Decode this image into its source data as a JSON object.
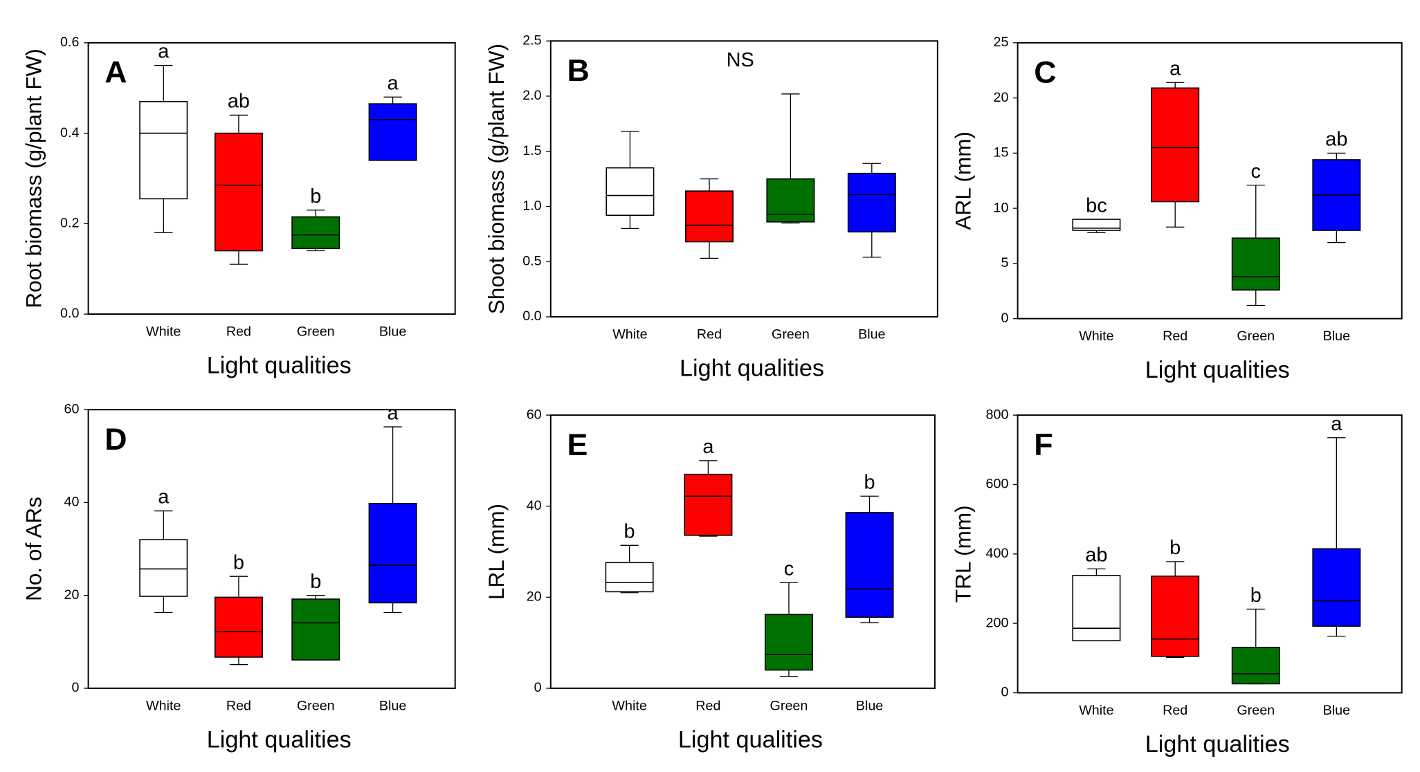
{
  "chart_data": [
    {
      "type": "box",
      "panel": "A",
      "y_label": "Root biomass (g/plant FW)",
      "x_label": "Light qualities",
      "categories": [
        "White",
        "Red",
        "Green",
        "Blue"
      ],
      "boxes": [
        {
          "color": "#ffffff",
          "low": 0.18,
          "q1": 0.255,
          "median": 0.4,
          "q3": 0.47,
          "high": 0.55
        },
        {
          "color": "#ff0000",
          "low": 0.11,
          "q1": 0.14,
          "median": 0.285,
          "q3": 0.4,
          "high": 0.44
        },
        {
          "color": "#007000",
          "low": 0.14,
          "q1": 0.145,
          "median": 0.175,
          "q3": 0.215,
          "high": 0.23
        },
        {
          "color": "#0000ff",
          "low": 0.34,
          "q1": 0.34,
          "median": 0.43,
          "q3": 0.465,
          "high": 0.48
        }
      ],
      "letters": [
        "a",
        "ab",
        "b",
        "a"
      ],
      "ylim": [
        0,
        0.6
      ],
      "yticks": [
        {
          "value": 0,
          "label": "0.0"
        },
        0.2,
        0.4,
        0.6
      ]
    },
    {
      "type": "box",
      "panel": "B",
      "y_label": "Shoot biomass (g/plant FW)",
      "x_label": "Light qualities",
      "categories": [
        "White",
        "Red",
        "Green",
        "Blue"
      ],
      "boxes": [
        {
          "color": "#ffffff",
          "low": 0.8,
          "q1": 0.92,
          "median": 1.1,
          "q3": 1.35,
          "high": 1.68
        },
        {
          "color": "#ff0000",
          "low": 0.53,
          "q1": 0.68,
          "median": 0.83,
          "q3": 1.14,
          "high": 1.25
        },
        {
          "color": "#007000",
          "low": 0.85,
          "q1": 0.86,
          "median": 0.93,
          "q3": 1.25,
          "high": 2.02
        },
        {
          "color": "#0000ff",
          "low": 0.54,
          "q1": 0.77,
          "median": 1.11,
          "q3": 1.3,
          "high": 1.39
        }
      ],
      "annotation": "NS",
      "ylim": [
        0,
        2.5
      ],
      "yticks": [
        {
          "value": 0,
          "label": "0.0"
        },
        0.5,
        {
          "value": 1,
          "label": "1.0"
        },
        1.5,
        {
          "value": 2,
          "label": "2.0"
        },
        2.5
      ]
    },
    {
      "type": "box",
      "panel": "C",
      "y_label": "ARL (mm)",
      "x_label": "Light qualities",
      "categories": [
        "White",
        "Red",
        "Green",
        "Blue"
      ],
      "boxes": [
        {
          "color": "#ffffff",
          "low": 7.8,
          "q1": 8.0,
          "median": 8.2,
          "q3": 9.0,
          "high": 9.0
        },
        {
          "color": "#ff0000",
          "low": 8.3,
          "q1": 10.6,
          "median": 15.5,
          "q3": 20.9,
          "high": 21.4
        },
        {
          "color": "#007000",
          "low": 1.2,
          "q1": 2.6,
          "median": 3.8,
          "q3": 7.3,
          "high": 12.1
        },
        {
          "color": "#0000ff",
          "low": 6.9,
          "q1": 8.0,
          "median": 11.2,
          "q3": 14.4,
          "high": 15.0
        }
      ],
      "letters": [
        "bc",
        "a",
        "c",
        "ab"
      ],
      "ylim": [
        0,
        25
      ],
      "yticks": [
        0,
        5,
        10,
        15,
        20,
        25
      ]
    },
    {
      "type": "box",
      "panel": "D",
      "y_label": "No. of ARs",
      "x_label": "Light qualities",
      "categories": [
        "White",
        "Red",
        "Green",
        "Blue"
      ],
      "boxes": [
        {
          "color": "#ffffff",
          "low": 16.3,
          "q1": 19.8,
          "median": 25.7,
          "q3": 32,
          "high": 38.2
        },
        {
          "color": "#ff0000",
          "low": 5.1,
          "q1": 6.7,
          "median": 12.2,
          "q3": 19.6,
          "high": 24.1
        },
        {
          "color": "#007000",
          "low": 6.1,
          "q1": 6.1,
          "median": 14.1,
          "q3": 19.2,
          "high": 20
        },
        {
          "color": "#0000ff",
          "low": 16.3,
          "q1": 18.4,
          "median": 26.5,
          "q3": 39.8,
          "high": 56.3
        }
      ],
      "letters": [
        "a",
        "b",
        "b",
        "a"
      ],
      "ylim": [
        0,
        60
      ],
      "yticks": [
        0,
        20,
        40,
        60
      ]
    },
    {
      "type": "box",
      "panel": "E",
      "y_label": "LRL (mm)",
      "x_label": "Light qualities",
      "categories": [
        "White",
        "Red",
        "Green",
        "Blue"
      ],
      "boxes": [
        {
          "color": "#ffffff",
          "low": 21,
          "q1": 21.2,
          "median": 23.2,
          "q3": 27.6,
          "high": 31.4
        },
        {
          "color": "#ff0000",
          "low": 33.4,
          "q1": 33.6,
          "median": 42.2,
          "q3": 47,
          "high": 50
        },
        {
          "color": "#007000",
          "low": 2.6,
          "q1": 4,
          "median": 7.4,
          "q3": 16.2,
          "high": 23.2
        },
        {
          "color": "#0000ff",
          "low": 14.4,
          "q1": 15.6,
          "median": 21.8,
          "q3": 38.6,
          "high": 42.2
        }
      ],
      "letters": [
        "b",
        "a",
        "c",
        "b"
      ],
      "ylim": [
        0,
        60
      ],
      "yticks": [
        0,
        20,
        40,
        60
      ]
    },
    {
      "type": "box",
      "panel": "F",
      "y_label": "TRL (mm)",
      "x_label": "Light qualities",
      "categories": [
        "White",
        "Red",
        "Green",
        "Blue"
      ],
      "boxes": [
        {
          "color": "#ffffff",
          "low": 150,
          "q1": 150,
          "median": 186,
          "q3": 338,
          "high": 357
        },
        {
          "color": "#ff0000",
          "low": 102,
          "q1": 105,
          "median": 155,
          "q3": 336,
          "high": 378
        },
        {
          "color": "#007000",
          "low": 26,
          "q1": 26,
          "median": 55,
          "q3": 131,
          "high": 241
        },
        {
          "color": "#0000ff",
          "low": 163,
          "q1": 192,
          "median": 265,
          "q3": 415,
          "high": 735
        }
      ],
      "letters": [
        "ab",
        "b",
        "b",
        "a"
      ],
      "ylim": [
        0,
        800
      ],
      "yticks": [
        0,
        200,
        400,
        600,
        800
      ]
    }
  ]
}
